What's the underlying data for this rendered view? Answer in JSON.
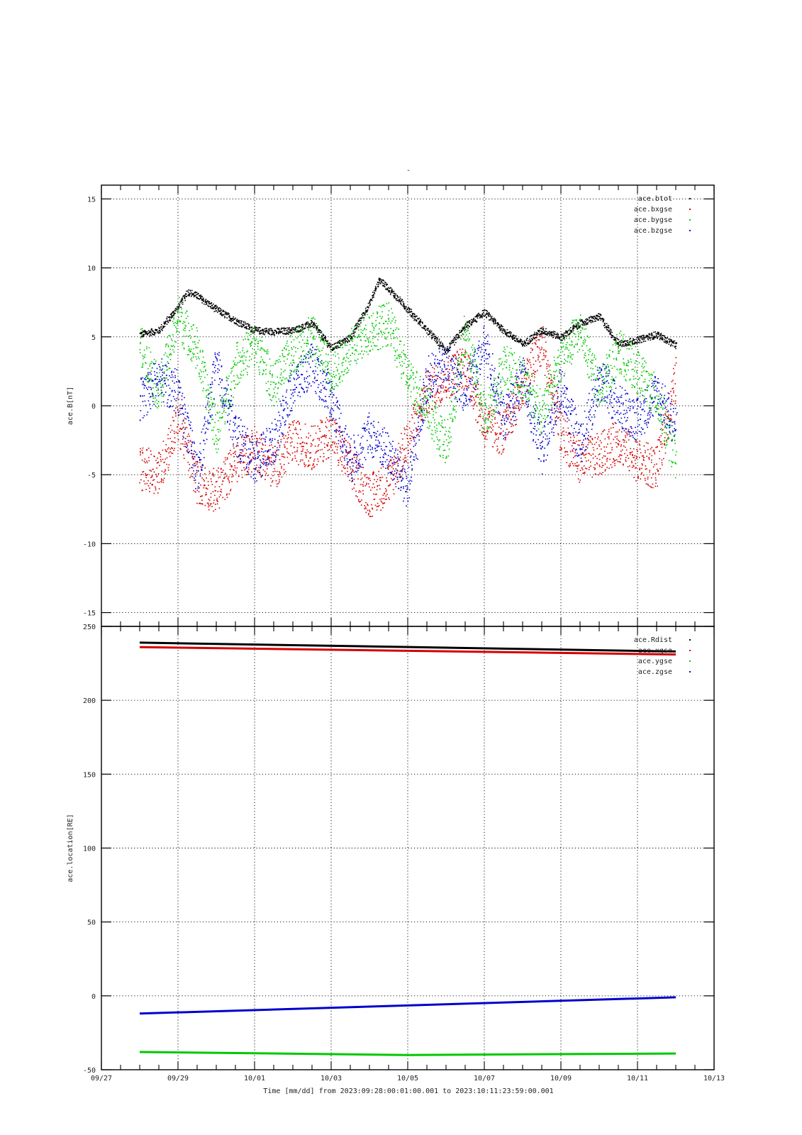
{
  "figure_title": "-",
  "x_axis_label": "Time [mm/dd]  from 2023:09:28:00:01:00.001  to  2023:10:11:23:59:00.001",
  "chart_data": [
    {
      "type": "scatter",
      "title": "",
      "ylabel": "ace.B[nT]",
      "xlim": [
        "2023-09-27",
        "2023-10-13"
      ],
      "ylim": [
        -16,
        16
      ],
      "yticks": [
        -15,
        -10,
        -5,
        0,
        5,
        10,
        15
      ],
      "x_tick_labels": [],
      "grid": true,
      "legend_position": "top-right",
      "series": [
        {
          "name": "ace.btot",
          "color": "#000000",
          "x": [
            "2023-09-28",
            "2023-09-28T12:00",
            "2023-09-29",
            "2023-09-29T06:00",
            "2023-09-29T12:00",
            "2023-09-30",
            "2023-09-30T12:00",
            "2023-10-01",
            "2023-10-01T12:00",
            "2023-10-02",
            "2023-10-02T12:00",
            "2023-10-03",
            "2023-10-03T12:00",
            "2023-10-04",
            "2023-10-04T06:00",
            "2023-10-04T12:00",
            "2023-10-05",
            "2023-10-05T12:00",
            "2023-10-06",
            "2023-10-06T12:00",
            "2023-10-07",
            "2023-10-07T12:00",
            "2023-10-08",
            "2023-10-08T12:00",
            "2023-10-09",
            "2023-10-09T12:00",
            "2023-10-10",
            "2023-10-10T12:00",
            "2023-10-11",
            "2023-10-11T12:00",
            "2023-10-12"
          ],
          "y": [
            5.2,
            5.5,
            7.2,
            8.3,
            8.0,
            7.0,
            6.2,
            5.5,
            5.4,
            5.5,
            6.0,
            4.2,
            5.0,
            7.5,
            9.2,
            8.5,
            7.0,
            5.5,
            4.0,
            5.8,
            6.8,
            5.5,
            4.5,
            5.5,
            5.0,
            6.0,
            6.5,
            4.5,
            4.8,
            5.2,
            4.4
          ]
        },
        {
          "name": "ace.bxgse",
          "color": "#d40000",
          "x": [
            "2023-09-28",
            "2023-09-28T12:00",
            "2023-09-29",
            "2023-09-29T12:00",
            "2023-09-30",
            "2023-09-30T12:00",
            "2023-10-01",
            "2023-10-01T12:00",
            "2023-10-02",
            "2023-10-02T12:00",
            "2023-10-03",
            "2023-10-03T12:00",
            "2023-10-04",
            "2023-10-04T12:00",
            "2023-10-05",
            "2023-10-05T12:00",
            "2023-10-06",
            "2023-10-06T12:00",
            "2023-10-07",
            "2023-10-07T12:00",
            "2023-10-08",
            "2023-10-08T12:00",
            "2023-10-09",
            "2023-10-09T12:00",
            "2023-10-10",
            "2023-10-10T12:00",
            "2023-10-11",
            "2023-10-11T12:00",
            "2023-10-12"
          ],
          "y": [
            -4.5,
            -4.8,
            -1.0,
            -5.5,
            -6.2,
            -4.0,
            -3.0,
            -4.5,
            -2.5,
            -3.0,
            -2.0,
            -4.5,
            -6.5,
            -5.5,
            -2.5,
            1.0,
            2.0,
            3.0,
            -1.5,
            -2.0,
            1.5,
            4.5,
            -2.0,
            -4.0,
            -3.5,
            -2.5,
            -4.0,
            -4.5,
            2.0
          ]
        },
        {
          "name": "ace.bygse",
          "color": "#00c800",
          "x": [
            "2023-09-28",
            "2023-09-28T12:00",
            "2023-09-29",
            "2023-09-29T12:00",
            "2023-09-30",
            "2023-09-30T12:00",
            "2023-10-01",
            "2023-10-01T12:00",
            "2023-10-02",
            "2023-10-02T12:00",
            "2023-10-03",
            "2023-10-03T12:00",
            "2023-10-04",
            "2023-10-04T12:00",
            "2023-10-05",
            "2023-10-05T12:00",
            "2023-10-06",
            "2023-10-06T12:00",
            "2023-10-07",
            "2023-10-07T12:00",
            "2023-10-08",
            "2023-10-08T12:00",
            "2023-10-09",
            "2023-10-09T12:00",
            "2023-10-10",
            "2023-10-10T12:00",
            "2023-10-11",
            "2023-10-11T12:00",
            "2023-10-12"
          ],
          "y": [
            4.5,
            1.0,
            6.5,
            4.0,
            -2.0,
            3.0,
            4.5,
            1.5,
            4.0,
            5.0,
            2.5,
            4.0,
            5.5,
            6.0,
            2.0,
            0.0,
            -3.0,
            5.5,
            -1.0,
            3.0,
            2.0,
            -0.5,
            3.5,
            5.5,
            1.0,
            4.0,
            2.5,
            0.5,
            -4.0
          ]
        },
        {
          "name": "ace.bzgse",
          "color": "#0000cc",
          "x": [
            "2023-09-28",
            "2023-09-28T12:00",
            "2023-09-29",
            "2023-09-29T12:00",
            "2023-09-30",
            "2023-09-30T12:00",
            "2023-10-01",
            "2023-10-01T12:00",
            "2023-10-02",
            "2023-10-02T12:00",
            "2023-10-03",
            "2023-10-03T12:00",
            "2023-10-04",
            "2023-10-04T12:00",
            "2023-10-05",
            "2023-10-05T12:00",
            "2023-10-06",
            "2023-10-06T12:00",
            "2023-10-07",
            "2023-10-07T12:00",
            "2023-10-08",
            "2023-10-08T12:00",
            "2023-10-09",
            "2023-10-09T12:00",
            "2023-10-10",
            "2023-10-10T12:00",
            "2023-10-11",
            "2023-10-11T12:00",
            "2023-10-12"
          ],
          "y": [
            0.5,
            2.0,
            1.0,
            -5.0,
            3.0,
            -2.0,
            -4.0,
            -2.5,
            1.5,
            3.0,
            0.5,
            -4.0,
            -2.0,
            -3.5,
            -6.0,
            2.0,
            3.0,
            1.0,
            4.5,
            -1.0,
            2.0,
            -3.5,
            1.5,
            -3.0,
            2.0,
            0.0,
            -1.0,
            1.0,
            -1.5
          ]
        }
      ]
    },
    {
      "type": "scatter",
      "title": "",
      "ylabel": "ace.location[RE]",
      "xlim": [
        "2023-09-27",
        "2023-10-13"
      ],
      "ylim": [
        -50,
        250
      ],
      "yticks": [
        -50,
        0,
        50,
        100,
        150,
        200,
        250
      ],
      "x_tick_labels": [
        "09/27",
        "09/29",
        "10/01",
        "10/03",
        "10/05",
        "10/07",
        "10/09",
        "10/11",
        "10/13"
      ],
      "grid": true,
      "legend_position": "top-right",
      "series": [
        {
          "name": "ace.Rdist",
          "color": "#000000",
          "x": [
            "2023-09-28",
            "2023-10-12"
          ],
          "y": [
            239,
            233
          ]
        },
        {
          "name": "ace.xgse",
          "color": "#d40000",
          "x": [
            "2023-09-28",
            "2023-10-12"
          ],
          "y": [
            236,
            231
          ]
        },
        {
          "name": "ace.ygse",
          "color": "#00c800",
          "x": [
            "2023-09-28",
            "2023-10-05",
            "2023-10-12"
          ],
          "y": [
            -38,
            -40,
            -39
          ]
        },
        {
          "name": "ace.zgse",
          "color": "#0000cc",
          "x": [
            "2023-09-28",
            "2023-10-12"
          ],
          "y": [
            -12,
            -1
          ]
        }
      ]
    }
  ]
}
